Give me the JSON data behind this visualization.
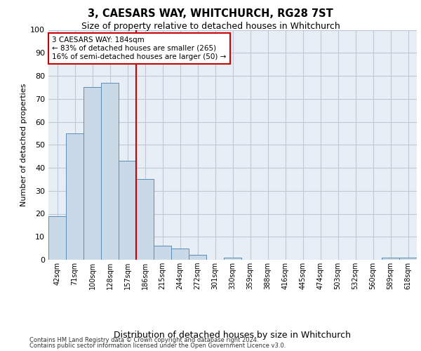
{
  "title1": "3, CAESARS WAY, WHITCHURCH, RG28 7ST",
  "title2": "Size of property relative to detached houses in Whitchurch",
  "xlabel": "Distribution of detached houses by size in Whitchurch",
  "ylabel": "Number of detached properties",
  "bins": [
    "42sqm",
    "71sqm",
    "100sqm",
    "128sqm",
    "157sqm",
    "186sqm",
    "215sqm",
    "244sqm",
    "272sqm",
    "301sqm",
    "330sqm",
    "359sqm",
    "388sqm",
    "416sqm",
    "445sqm",
    "474sqm",
    "503sqm",
    "532sqm",
    "560sqm",
    "589sqm",
    "618sqm"
  ],
  "values": [
    19,
    55,
    75,
    77,
    43,
    35,
    6,
    5,
    2,
    0,
    1,
    0,
    0,
    0,
    0,
    0,
    0,
    0,
    0,
    1,
    1
  ],
  "bar_color": "#c9d9e8",
  "bar_edge_color": "#5b8db8",
  "annotation_text": "3 CAESARS WAY: 184sqm\n← 83% of detached houses are smaller (265)\n16% of semi-detached houses are larger (50) →",
  "annotation_box_color": "#ffffff",
  "annotation_box_edge": "#cc0000",
  "property_line_color": "#cc0000",
  "grid_color": "#c0c8d8",
  "background_color": "#e8eef5",
  "ylim": [
    0,
    100
  ],
  "yticks": [
    0,
    10,
    20,
    30,
    40,
    50,
    60,
    70,
    80,
    90,
    100
  ],
  "footer1": "Contains HM Land Registry data © Crown copyright and database right 2024.",
  "footer2": "Contains public sector information licensed under the Open Government Licence v3.0."
}
